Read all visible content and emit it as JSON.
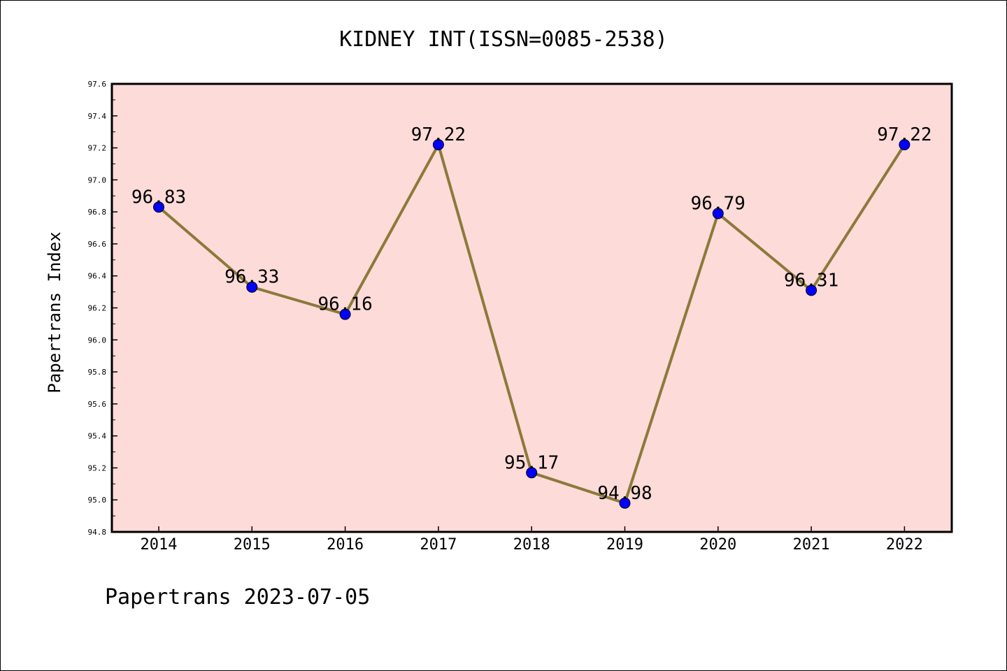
{
  "chart_data": {
    "type": "line",
    "title": "KIDNEY INT(ISSN=0085-2538)",
    "xlabel": "",
    "ylabel": "Papertrans Index",
    "categories": [
      "2014",
      "2015",
      "2016",
      "2017",
      "2018",
      "2019",
      "2020",
      "2021",
      "2022"
    ],
    "series": [
      {
        "values": [
          96.83,
          96.33,
          96.16,
          97.22,
          95.17,
          94.98,
          96.79,
          96.31,
          97.22
        ],
        "labels": [
          "96.83",
          "96.33",
          "96.16",
          "97.22",
          "95.17",
          "94.98",
          "96.79",
          "96.31",
          "97.22"
        ]
      }
    ],
    "ylim": [
      94.8,
      97.6
    ],
    "yticks": [
      "94.8",
      "95.0",
      "95.2",
      "95.4",
      "95.6",
      "95.8",
      "96.0",
      "96.2",
      "96.4",
      "96.6",
      "96.8",
      "97.0",
      "97.2",
      "97.4",
      "97.6"
    ],
    "grid": false,
    "footer": "Papertrans 2023-07-05",
    "colors": {
      "plot_background": "#fddbd9",
      "line": "#8b7a3a",
      "marker": "#0000ff"
    }
  }
}
